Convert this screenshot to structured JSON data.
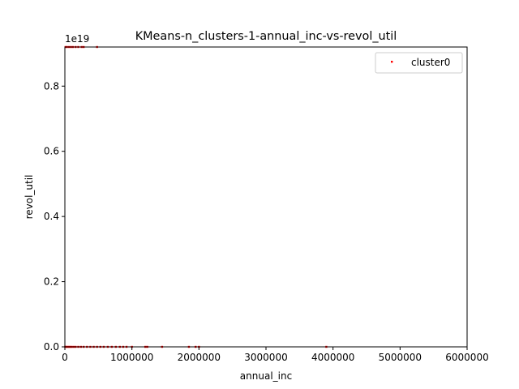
{
  "chart_data": {
    "type": "scatter",
    "title": "KMeans-n_clusters-1-annual_inc-vs-revol_util",
    "xlabel": "annual_inc",
    "ylabel": "revol_util",
    "y_offset_label": "1e19",
    "xlim": [
      0,
      6000000
    ],
    "ylim": [
      0,
      0.92
    ],
    "y_scale": "1e19",
    "x_ticks": [
      0,
      1000000,
      2000000,
      3000000,
      4000000,
      5000000,
      6000000
    ],
    "x_tick_labels": [
      "0",
      "1000000",
      "2000000",
      "3000000",
      "4000000",
      "5000000",
      "6000000"
    ],
    "y_ticks": [
      0.0,
      0.2,
      0.4,
      0.6,
      0.8
    ],
    "y_tick_labels": [
      "0.0",
      "0.2",
      "0.4",
      "0.6",
      "0.8"
    ],
    "grid": false,
    "legend_position": "top-right",
    "series": [
      {
        "name": "cluster0",
        "color": "#ff0000",
        "points": [
          [
            10000,
            0.92
          ],
          [
            30000,
            0.92
          ],
          [
            60000,
            0.92
          ],
          [
            90000,
            0.92
          ],
          [
            120000,
            0.92
          ],
          [
            160000,
            0.92
          ],
          [
            200000,
            0.92
          ],
          [
            250000,
            0.92
          ],
          [
            280000,
            0.92
          ],
          [
            480000,
            0.92
          ],
          [
            5000,
            0.0
          ],
          [
            20000,
            0.0
          ],
          [
            40000,
            0.0
          ],
          [
            60000,
            0.0
          ],
          [
            80000,
            0.0
          ],
          [
            100000,
            0.0
          ],
          [
            130000,
            0.0
          ],
          [
            160000,
            0.0
          ],
          [
            200000,
            0.0
          ],
          [
            240000,
            0.0
          ],
          [
            280000,
            0.0
          ],
          [
            330000,
            0.0
          ],
          [
            380000,
            0.0
          ],
          [
            430000,
            0.0
          ],
          [
            480000,
            0.0
          ],
          [
            530000,
            0.0
          ],
          [
            580000,
            0.0
          ],
          [
            640000,
            0.0
          ],
          [
            700000,
            0.0
          ],
          [
            760000,
            0.0
          ],
          [
            820000,
            0.0
          ],
          [
            870000,
            0.0
          ],
          [
            920000,
            0.0
          ],
          [
            1000000,
            0.0
          ],
          [
            1200000,
            0.0
          ],
          [
            1230000,
            0.0
          ],
          [
            1450000,
            0.0
          ],
          [
            1850000,
            0.0
          ],
          [
            1950000,
            0.0
          ],
          [
            2000000,
            0.0
          ],
          [
            3900000,
            0.0
          ]
        ]
      }
    ]
  }
}
